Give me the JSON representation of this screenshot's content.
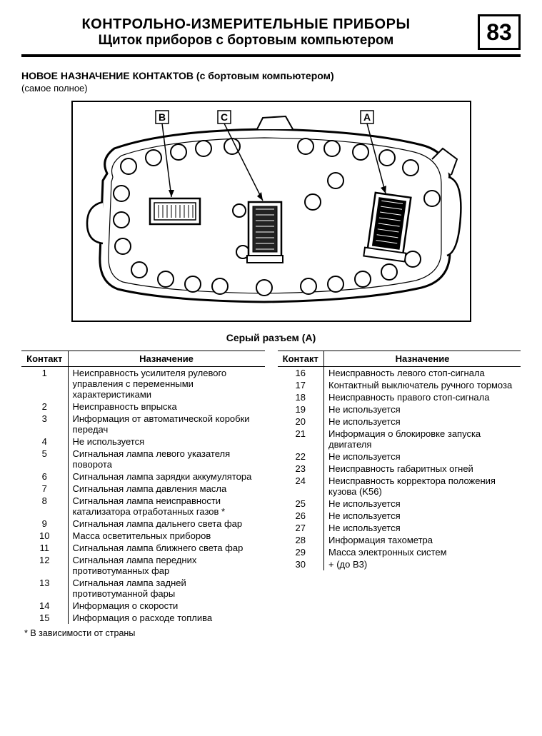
{
  "header": {
    "title": "КОНТРОЛЬНО-ИЗМЕРИТЕЛЬНЫЕ ПРИБОРЫ",
    "subtitle": "Щиток приборов с бортовым компьютером",
    "page_number": "83"
  },
  "section": {
    "heading": "НОВОЕ НАЗНАЧЕНИЕ КОНТАКТОВ (с бортовым компьютером)",
    "sub": "(самое полное)"
  },
  "diagram": {
    "labels": {
      "A": "A",
      "B": "B",
      "C": "C"
    }
  },
  "connector_title": "Серый разъем (A)",
  "table_headers": {
    "contact": "Контакт",
    "assignment": "Назначение"
  },
  "left_rows": [
    {
      "n": "1",
      "t": "Неисправность усилителя рулевого управления с переменными характеристиками"
    },
    {
      "n": "2",
      "t": "Неисправность впрыска"
    },
    {
      "n": "3",
      "t": "Информация от автоматической коробки передач"
    },
    {
      "n": "4",
      "t": "Не используется"
    },
    {
      "n": "5",
      "t": "Сигнальная лампа левого указателя поворота"
    },
    {
      "n": "6",
      "t": "Сигнальная лампа зарядки аккумулятора"
    },
    {
      "n": "7",
      "t": "Сигнальная лампа давления масла"
    },
    {
      "n": "8",
      "t": "Сигнальная лампа неисправности катализатора отработанных газов *"
    },
    {
      "n": "9",
      "t": "Сигнальная лампа дальнего света фар"
    },
    {
      "n": "10",
      "t": "Масса осветительных приборов"
    },
    {
      "n": "11",
      "t": "Сигнальная лампа ближнего света фар"
    },
    {
      "n": "12",
      "t": "Сигнальная лампа передних противотуманных фар"
    },
    {
      "n": "13",
      "t": "Сигнальная лампа задней противотуманной фары"
    },
    {
      "n": "14",
      "t": "Информация о скорости"
    },
    {
      "n": "15",
      "t": "Информация о расходе топлива"
    }
  ],
  "right_rows": [
    {
      "n": "16",
      "t": "Неисправность левого стоп-сигнала"
    },
    {
      "n": "17",
      "t": "Контактный выключатель ручного тормоза"
    },
    {
      "n": "18",
      "t": "Неисправность правого стоп-сигнала"
    },
    {
      "n": "19",
      "t": "Не используется"
    },
    {
      "n": "20",
      "t": "Не используется"
    },
    {
      "n": "21",
      "t": "Информация о блокировке запуска двигателя"
    },
    {
      "n": "22",
      "t": "Не используется"
    },
    {
      "n": "23",
      "t": "Неисправность габаритных огней"
    },
    {
      "n": "24",
      "t": "Неисправность корректора положения кузова (K56)"
    },
    {
      "n": "25",
      "t": "Не используется"
    },
    {
      "n": "26",
      "t": "Не используется"
    },
    {
      "n": "27",
      "t": "Не используется"
    },
    {
      "n": "28",
      "t": "Информация тахометра"
    },
    {
      "n": "29",
      "t": "Масса электронных систем"
    },
    {
      "n": "30",
      "t": "+ (до B3)"
    }
  ],
  "footnote": "* В зависимости от страны"
}
